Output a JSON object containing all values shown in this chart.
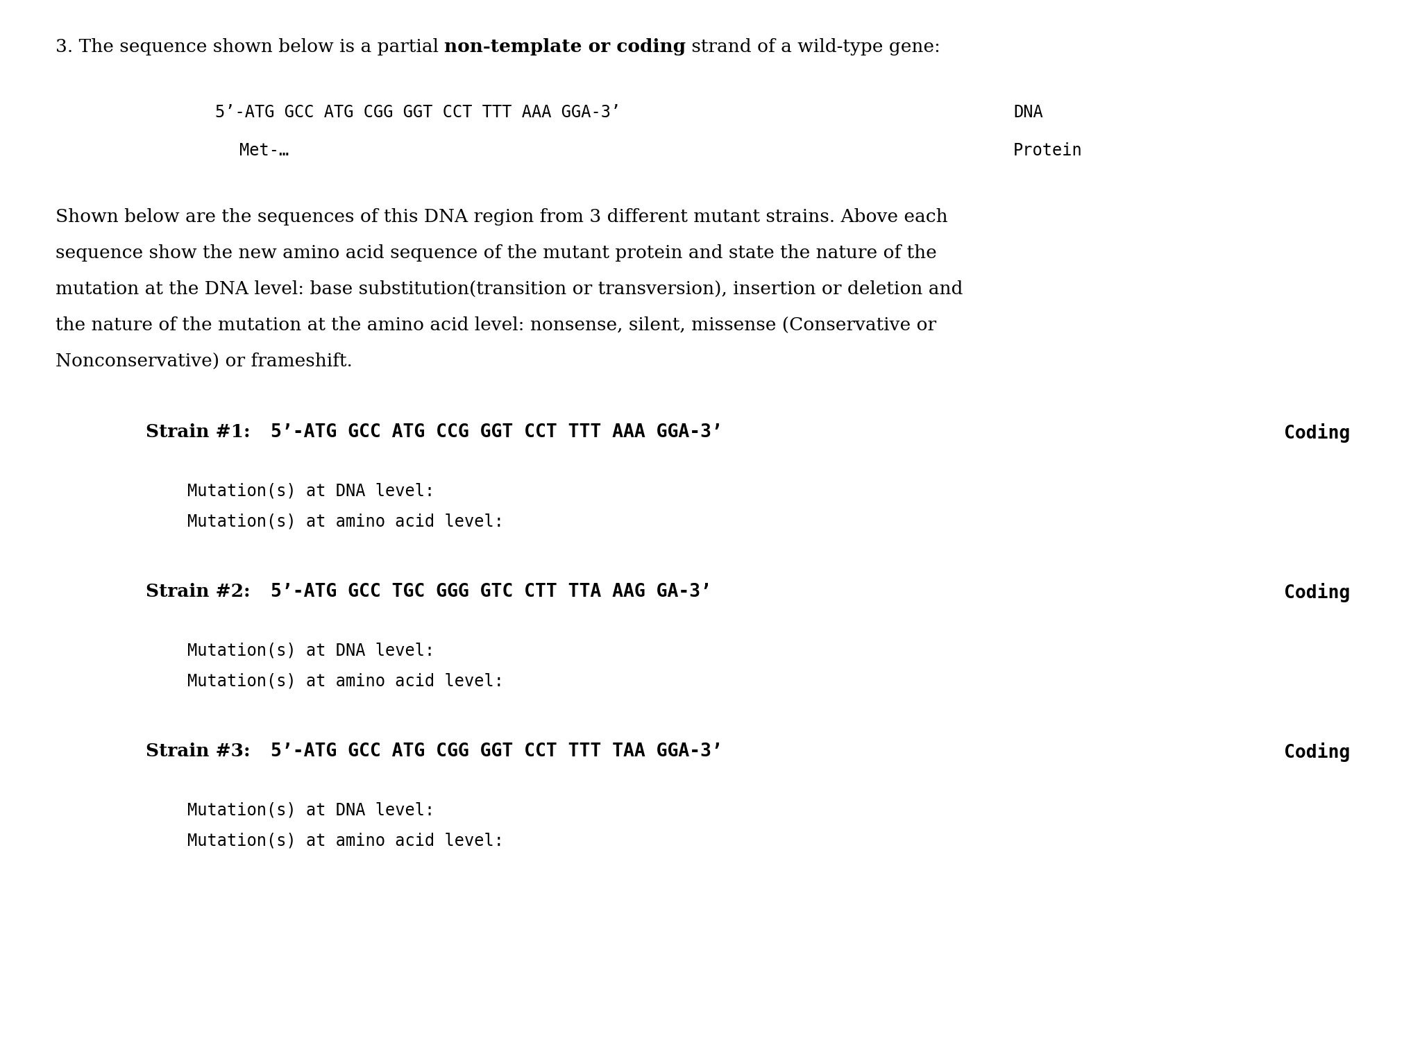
{
  "background_color": "#ffffff",
  "figsize": [
    20.46,
    15.29
  ],
  "dpi": 100,
  "title_pre": "3. The sequence shown below is a partial ",
  "title_bold": "non-template or coding",
  "title_post": " strand of a wild-type gene:",
  "dna_seq": "5’-ATG GCC ATG CGG GGT CCT TTT AAA GGA-3’",
  "dna_label": "DNA",
  "protein_seq": "Met-…",
  "protein_label": "Protein",
  "para_lines": [
    "Shown below are the sequences of this DNA region from 3 different mutant strains. Above each",
    "sequence show the new amino acid sequence of the mutant protein and state the nature of the",
    "mutation at the DNA level: base substitution(transition or transversion), insertion or deletion and",
    "the nature of the mutation at the amino acid level: nonsense, silent, missense (Conservative or",
    "Nonconservative) or frameshift."
  ],
  "strain1_label": "Strain #1:",
  "strain1_seq": "5’-ATG GCC ATG CCG GGT CCT TTT AAA GGA-3’",
  "strain1_coding": "Coding",
  "strain2_label": "Strain #2:",
  "strain2_seq": "5’-ATG GCC TGC GGG GTC CTT TTA AAG GA-3’",
  "strain2_coding": "Coding",
  "strain3_label": "Strain #3:",
  "strain3_seq": "5’-ATG GCC ATG CGG GGT CCT TTT TAA GGA-3’",
  "strain3_coding": "Coding",
  "mut_dna": "Mutation(s) at DNA level:",
  "mut_aa": "Mutation(s) at amino acid level:",
  "fs_title": 19,
  "fs_mono_bold": 19,
  "fs_mono": 17,
  "fs_para": 19,
  "fs_strain_label": 19
}
